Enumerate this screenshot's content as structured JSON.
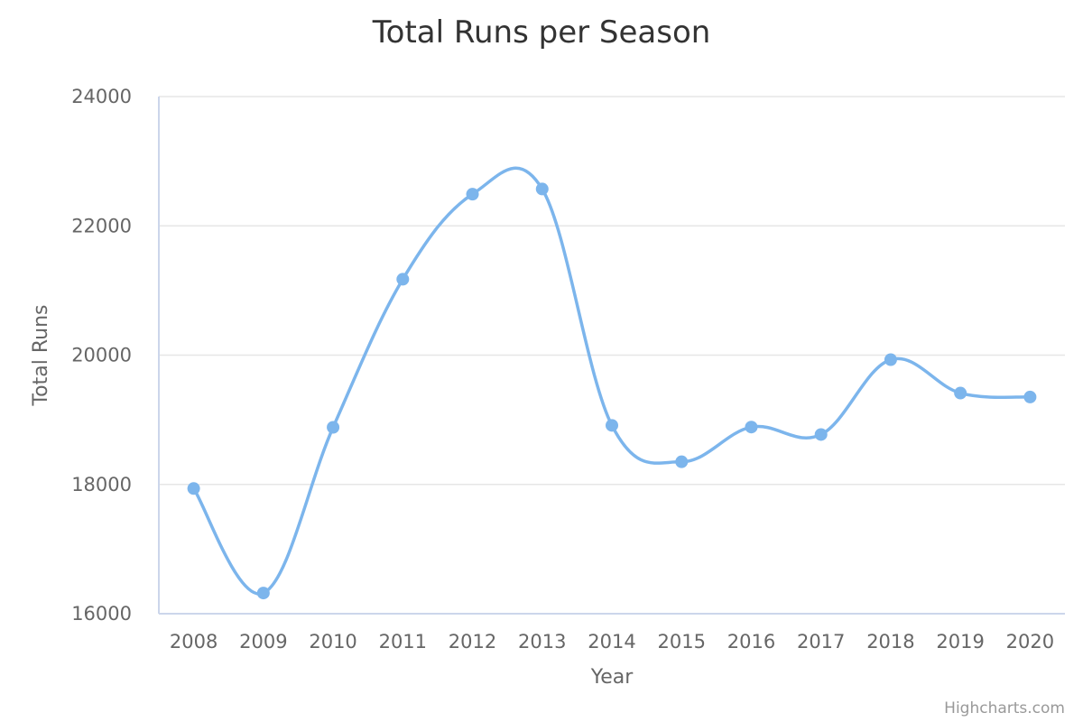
{
  "colors": {
    "series": "#7cb5ec",
    "grid": "#e6e6e6",
    "axis": "#ccd6eb",
    "text": "#666666",
    "title": "#333333",
    "credit": "#999999"
  },
  "credit": "Highcharts.com",
  "chart_data": {
    "type": "line",
    "smoothed": true,
    "title": "Total Runs per Season",
    "xlabel": "Year",
    "ylabel": "Total Runs",
    "categories": [
      "2008",
      "2009",
      "2010",
      "2011",
      "2012",
      "2013",
      "2014",
      "2015",
      "2016",
      "2017",
      "2018",
      "2019",
      "2020"
    ],
    "yticks": [
      "16000",
      "18000",
      "20000",
      "22000",
      "24000"
    ],
    "ylim": [
      16000,
      24000
    ],
    "grid": true,
    "legend": "none",
    "series": [
      {
        "values": [
          17937,
          16320,
          18883,
          21174,
          22490,
          22570,
          18913,
          18350,
          18887,
          18772,
          19930,
          19413,
          19352
        ]
      }
    ]
  }
}
